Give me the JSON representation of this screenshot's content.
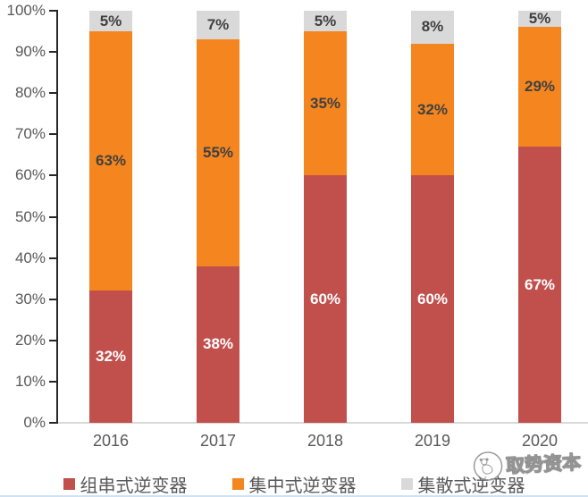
{
  "colors": {
    "series_red": "#C1504D",
    "series_orange": "#F5861F",
    "series_gray": "#D9D9D9",
    "label_dark": "#404040",
    "label_light": "#FFFFFF",
    "axis_text": "#595959",
    "axis_line": "#262626",
    "baseline": "#D9D9D9",
    "bottom_rule": "#CFE2F3"
  },
  "chart_data": {
    "type": "bar",
    "stacked": true,
    "normalized_to_100": true,
    "unit": "%",
    "categories": [
      "2016",
      "2017",
      "2018",
      "2019",
      "2020"
    ],
    "series": [
      {
        "name": "组串式逆变器",
        "color_key": "series_red",
        "values": [
          32,
          38,
          60,
          60,
          67
        ],
        "labels": [
          "32%",
          "38%",
          "60%",
          "60%",
          "67%"
        ],
        "label_color": "#FFFFFF"
      },
      {
        "name": "集中式逆变器",
        "color_key": "series_orange",
        "values": [
          63,
          55,
          35,
          32,
          29
        ],
        "labels": [
          "63%",
          "55%",
          "35%",
          "32%",
          "29%"
        ],
        "label_color": "#404040"
      },
      {
        "name": "集散式逆变器",
        "color_key": "series_gray",
        "values": [
          5,
          7,
          5,
          8,
          5
        ],
        "labels": [
          "5%",
          "7%",
          "5%",
          "8%",
          "5%"
        ],
        "label_color": "#404040"
      }
    ],
    "y_axis": {
      "min": 0,
      "max": 100,
      "step": 10,
      "tick_labels": [
        "0%",
        "10%",
        "20%",
        "30%",
        "40%",
        "50%",
        "60%",
        "70%",
        "80%",
        "90%",
        "100%"
      ]
    },
    "xlabel": "",
    "ylabel": "",
    "title": "",
    "grid": false,
    "legend_position": "bottom"
  },
  "watermark": {
    "text": "取势资本",
    "logo": "panda-circle-logo"
  }
}
